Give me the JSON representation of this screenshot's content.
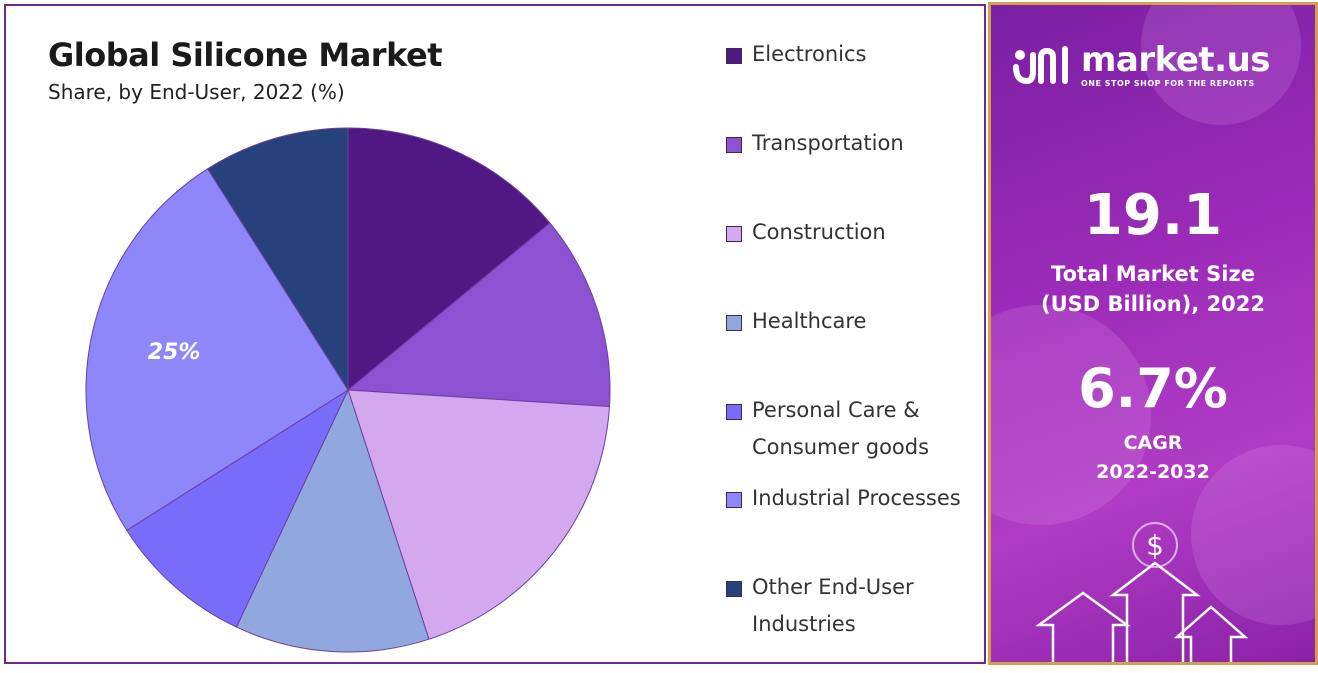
{
  "chart_data": {
    "type": "pie",
    "title": "Global Silicone Market",
    "subtitle": "Share, by End-User, 2022 (%)",
    "series": [
      {
        "name": "Electronics",
        "value": 14,
        "color": "#4f1883"
      },
      {
        "name": "Transportation",
        "value": 12,
        "color": "#8c52d2"
      },
      {
        "name": "Construction",
        "value": 19,
        "color": "#d3a8ef"
      },
      {
        "name": "Healthcare",
        "value": 12,
        "color": "#91a8de"
      },
      {
        "name": "Personal Care & Consumer goods",
        "value": 9,
        "color": "#7a6cfb"
      },
      {
        "name": "Industrial Processes",
        "value": 25,
        "color": "#8e87fa"
      },
      {
        "name": "Other End-User Industries",
        "value": 9,
        "color": "#27417c"
      }
    ],
    "data_labels": {
      "Industrial Processes": "25%"
    },
    "legend_position": "right"
  },
  "legend": [
    {
      "label": "Electronics",
      "color": "#4f1883"
    },
    {
      "label": "Transportation",
      "color": "#8c52d2"
    },
    {
      "label": "Construction",
      "color": "#d3a8ef"
    },
    {
      "label": "Healthcare",
      "color": "#91a8de"
    },
    {
      "label": "Personal Care & Consumer goods",
      "color": "#7a6cfb"
    },
    {
      "label": "Industrial Processes",
      "color": "#8e87fa"
    },
    {
      "label": "Other End-User Industries",
      "color": "#27417c"
    }
  ],
  "side_panel": {
    "brand_name": "market.us",
    "brand_tagline": "ONE STOP SHOP FOR THE REPORTS",
    "market_size_value": "19.1",
    "market_size_label_line1": "Total Market Size",
    "market_size_label_line2": "(USD Billion), 2022",
    "cagr_value": "6.7%",
    "cagr_label_line1": "CAGR",
    "cagr_label_line2": "2022-2032",
    "decor_symbol": "$"
  }
}
